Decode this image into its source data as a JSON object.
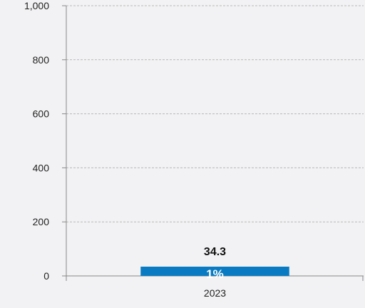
{
  "chart_data": {
    "type": "bar",
    "categories": [
      "2023"
    ],
    "values": [
      34.3
    ],
    "data_labels": [
      "34.3"
    ],
    "inner_labels": [
      "1%"
    ],
    "ylim": [
      0,
      1000
    ],
    "yticks": [
      0,
      200,
      400,
      600,
      800,
      1000
    ],
    "ytick_labels": [
      "0",
      "200",
      "400",
      "600",
      "800",
      "1,000"
    ],
    "grid": true,
    "colors": {
      "bar": "#0a7bc2",
      "grid": "#b8b8b8",
      "axis": "#888888"
    }
  }
}
